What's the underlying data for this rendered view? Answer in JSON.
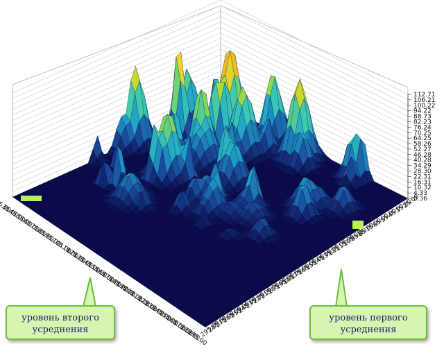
{
  "chart_data": {
    "type": "surface3d",
    "z_ticks": [
      "112.71",
      "106.21",
      "100.22",
      "94.22",
      "88.73",
      "82.23",
      "76.24",
      "70.25",
      "64.25",
      "58.26",
      "52.27",
      "46.28",
      "40.28",
      "34.29",
      "28.30",
      "22.31",
      "16.31",
      "10.32",
      "4.33",
      "0.36"
    ],
    "z_ticks_visible": [
      "112.71",
      "106.21",
      "100.22",
      "94.22",
      "88.73",
      "82.23",
      "76.24",
      "70.25",
      "64.25",
      "58.26",
      "52.27",
      "46.28",
      "40.28",
      "34.29",
      "28.30",
      "22.31",
      "16.31",
      "10.32",
      "4.33",
      "0.36"
    ],
    "z_range": [
      0.36,
      112.71
    ],
    "left_axis_ticks": [
      "25.00",
      "35.00",
      "45.00",
      "55.00",
      "65.00",
      "75.00",
      "85.00",
      "95.00",
      "105.00",
      "115.00",
      "125.00",
      "135.00",
      "145.00",
      "155.00",
      "165.00",
      "175.00",
      "185.00",
      "195.00",
      "205.00",
      "215.00",
      "225.00",
      "235.00",
      "245.00",
      "255.00",
      "265.00",
      "275.00",
      "285.00",
      "295.00"
    ],
    "right_axis_ticks": [
      "25.00",
      "35.00",
      "45.00",
      "55.00",
      "65.00",
      "75.00",
      "85.00",
      "95.00",
      "105.00",
      "115.00",
      "125.00",
      "135.00",
      "145.00",
      "155.00",
      "165.00",
      "175.00",
      "185.00",
      "195.00",
      "205.00",
      "215.00",
      "225.00",
      "235.00",
      "245.00",
      "255.00",
      "265.00",
      "275.00",
      "285.00",
      "295.00"
    ],
    "colors": [
      "#0b0b4a",
      "#1a4c9c",
      "#1ea0c8",
      "#39c7b4",
      "#9fdc3c",
      "#f0d22a",
      "#e88a1e",
      "#b23a10",
      "#6a1a08"
    ]
  },
  "callouts": {
    "left": [
      "уровень второго",
      "усреднения"
    ],
    "right": [
      "уровень первого",
      "усреднения"
    ]
  }
}
